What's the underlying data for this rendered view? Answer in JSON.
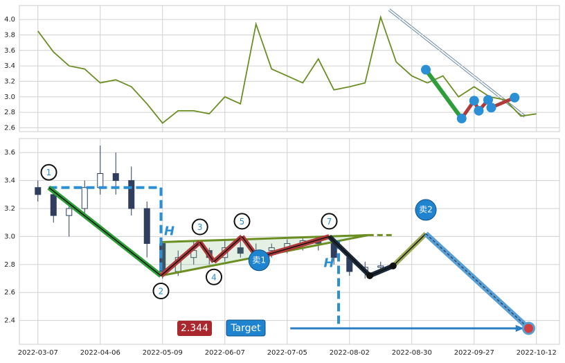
{
  "chart_data": [
    {
      "type": "line",
      "categories": [
        null,
        null,
        null,
        null,
        null,
        null,
        null,
        null,
        null,
        null,
        null,
        null,
        null,
        null,
        null,
        null,
        null,
        null,
        null,
        null,
        null,
        null,
        null,
        null,
        null,
        null,
        null,
        null,
        null,
        null,
        null,
        null,
        null,
        null,
        null
      ],
      "series": [
        {
          "color": "#6b8e23",
          "values": [
            null,
            3.85,
            3.58,
            3.4,
            3.36,
            3.18,
            3.22,
            3.13,
            2.91,
            2.66,
            2.82,
            2.82,
            2.78,
            3.0,
            2.91,
            3.94,
            3.36,
            3.27,
            3.18,
            3.49,
            3.09,
            3.13,
            3.18,
            4.03,
            3.45,
            3.27,
            3.18,
            3.27,
            3.0,
            3.13,
            3.0,
            2.96,
            2.75,
            2.78,
            null
          ]
        }
      ],
      "ylim": [
        2.55,
        4.18
      ],
      "yticks": [
        2.6,
        2.8,
        {
          "value": 3,
          "label": "3.0"
        },
        3.2,
        3.4,
        3.6,
        3.8,
        {
          "value": 4,
          "label": "4.0"
        }
      ],
      "grid": true,
      "pattern": {
        "points": [
          {
            "x": 25.9,
            "y": 3.35
          },
          {
            "x": 28.2,
            "y": 2.72
          },
          {
            "x": 29.0,
            "y": 2.95
          },
          {
            "x": 29.3,
            "y": 2.82
          },
          {
            "x": 29.9,
            "y": 2.96
          },
          {
            "x": 30.1,
            "y": 2.86
          },
          {
            "x": 31.6,
            "y": 2.99
          }
        ],
        "color": "#2a8fd4"
      }
    },
    {
      "type": "candlestick",
      "categories": [
        null,
        "2022-03-07",
        null,
        null,
        null,
        "2022-04-06",
        null,
        null,
        null,
        "2022-05-09",
        null,
        null,
        null,
        "2022-06-07",
        null,
        null,
        null,
        "2022-07-05",
        null,
        null,
        null,
        "2022-08-02",
        null,
        null,
        null,
        "2022-08-30",
        null,
        null,
        null,
        "2022-09-27",
        null,
        null,
        null,
        "2022-10-12",
        null
      ],
      "open": [
        null,
        3.35,
        3.3,
        3.15,
        3.2,
        3.35,
        3.45,
        3.4,
        3.2,
        2.95,
        2.75,
        2.85,
        2.9,
        2.85,
        2.92,
        2.88,
        2.9,
        2.92,
        2.95,
        2.97,
        2.95,
        2.85,
        2.75,
        2.78,
        null,
        null,
        null,
        null,
        null,
        null,
        null,
        null,
        null,
        null,
        null
      ],
      "high": [
        null,
        3.4,
        3.35,
        3.25,
        3.4,
        3.65,
        3.6,
        3.5,
        3.25,
        2.95,
        2.9,
        2.97,
        2.92,
        2.98,
        3.0,
        2.95,
        2.95,
        2.98,
        3.0,
        3.0,
        2.95,
        2.88,
        2.82,
        2.82,
        null,
        null,
        null,
        null,
        null,
        null,
        null,
        null,
        null,
        null,
        null
      ],
      "low": [
        null,
        3.25,
        3.1,
        3.0,
        3.15,
        3.3,
        3.3,
        3.15,
        2.85,
        2.7,
        2.72,
        2.8,
        2.8,
        2.82,
        2.85,
        2.8,
        2.85,
        2.88,
        2.9,
        2.9,
        2.8,
        2.72,
        2.7,
        2.74,
        null,
        null,
        null,
        null,
        null,
        null,
        null,
        null,
        null,
        null,
        null
      ],
      "close": [
        null,
        3.3,
        3.15,
        3.2,
        3.35,
        3.45,
        3.4,
        3.2,
        2.95,
        2.75,
        2.85,
        2.9,
        2.85,
        2.92,
        2.88,
        2.9,
        2.92,
        2.95,
        2.97,
        2.95,
        2.85,
        2.75,
        2.78,
        2.79,
        null,
        null,
        null,
        null,
        null,
        null,
        null,
        null,
        null,
        null,
        null
      ],
      "ylim": [
        2.23,
        3.7
      ],
      "yticks": [
        2.4,
        2.6,
        2.8,
        {
          "value": 3,
          "label": "3.0"
        },
        3.2,
        3.4,
        3.6
      ],
      "grid": true,
      "pattern": {
        "points": [
          {
            "label": "1",
            "x": 1.7,
            "y": 3.35,
            "pos": "above"
          },
          {
            "label": "2",
            "x": 8.9,
            "y": 2.72,
            "pos": "below"
          },
          {
            "label": "3",
            "x": 11.4,
            "y": 2.96,
            "pos": "above"
          },
          {
            "label": "4",
            "x": 12.3,
            "y": 2.82,
            "pos": "below"
          },
          {
            "label": "5",
            "x": 14.1,
            "y": 3.0,
            "pos": "above"
          },
          {
            "x": 15.1,
            "y": 2.85
          },
          {
            "label": "7",
            "x": 19.7,
            "y": 3.0,
            "pos": "above"
          },
          {
            "x": 22.3,
            "y": 2.72
          },
          {
            "x": 23.8,
            "y": 2.79
          },
          {
            "x": 25.9,
            "y": 3.02
          },
          {
            "x": 32.5,
            "y": 2.344
          }
        ],
        "segment_colors": [
          "#2e9e3a",
          "#b03a3a",
          "#b03a3a",
          "#b03a3a",
          "#b03a3a",
          "#b03a3a",
          "#1a2a3a",
          "#1a2a3a",
          "#9aaa55",
          "#5a9fd4"
        ],
        "triangle": {
          "upper": [
            [
              8.9,
              2.96
            ],
            [
              22.2,
              3.01
            ]
          ],
          "lower": [
            [
              8.9,
              2.72
            ],
            [
              22.2,
              3.01
            ]
          ],
          "dash_to": 23.9,
          "color": "#6b8e23"
        },
        "h_lines": [
          {
            "label": "H",
            "start_x": 1.7,
            "x": 8.9,
            "from": 3.35,
            "to": 2.72
          },
          {
            "label": "H",
            "x": 20.3,
            "from": 2.97,
            "to": 2.344
          }
        ],
        "signals": [
          {
            "label": "卖1",
            "x": 15.2,
            "y": 2.83
          },
          {
            "label": "卖2",
            "x": 25.9,
            "y": 3.19
          }
        ],
        "target": {
          "value": 2.344,
          "label": "2.344",
          "text": "Target",
          "arrow_from": 17.2,
          "arrow_to": 32.2
        }
      }
    }
  ]
}
